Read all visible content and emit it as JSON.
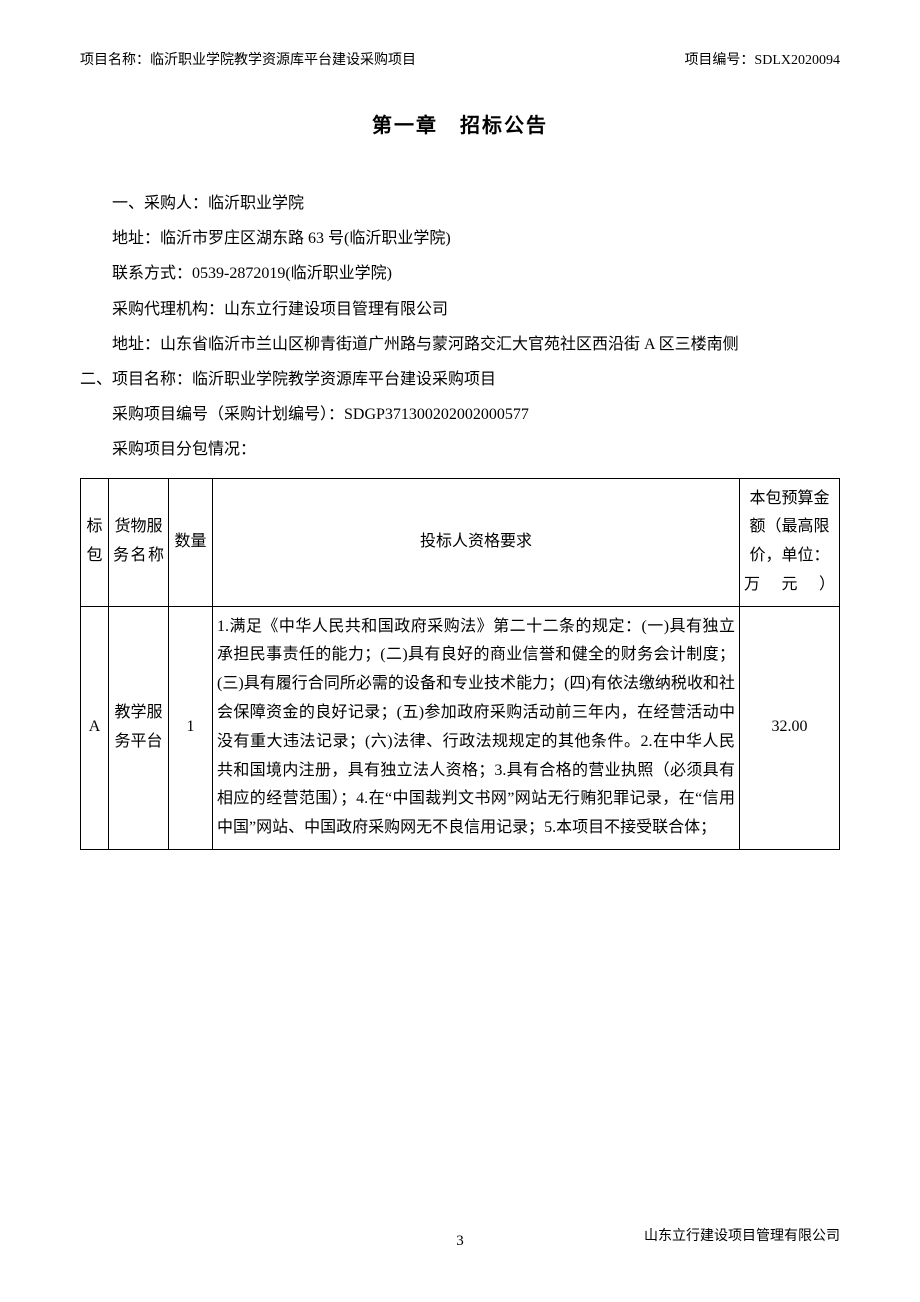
{
  "header": {
    "project_label": "项目名称：临沂职业学院教学资源库平台建设采购项目",
    "project_code_label": "项目编号：SDLX2020094"
  },
  "chapter_title": "第一章 招标公告",
  "body": {
    "p1": "一、采购人：临沂职业学院",
    "p2": "地址：临沂市罗庄区湖东路 63 号(临沂职业学院)",
    "p3": "联系方式：0539-2872019(临沂职业学院)",
    "p4": "采购代理机构：山东立行建设项目管理有限公司",
    "p5": "地址：山东省临沂市兰山区柳青街道广州路与蒙河路交汇大官苑社区西沿街 A 区三楼南侧",
    "p6": "二、项目名称：临沂职业学院教学资源库平台建设采购项目",
    "p7": "采购项目编号（采购计划编号）：SDGP371300202002000577",
    "p8": "采购项目分包情况："
  },
  "table": {
    "headers": {
      "pkg": "标包",
      "name": "货物服务名称",
      "qty": "数量",
      "req": "投标人资格要求",
      "budget": "本包预算金额（最高限价，单位：万元）"
    },
    "row": {
      "pkg": "A",
      "name": "教学服务平台",
      "qty": "1",
      "req": "1.满足《中华人民共和国政府采购法》第二十二条的规定：(一)具有独立承担民事责任的能力；(二)具有良好的商业信誉和健全的财务会计制度；(三)具有履行合同所必需的设备和专业技术能力；(四)有依法缴纳税收和社会保障资金的良好记录；(五)参加政府采购活动前三年内，在经营活动中没有重大违法记录；(六)法律、行政法规规定的其他条件。2.在中华人民共和国境内注册，具有独立法人资格；3.具有合格的营业执照（必须具有相应的经营范围）；4.在“中国裁判文书网”网站无行贿犯罪记录，在“信用中国”网站、中国政府采购网无不良信用记录；5.本项目不接受联合体；",
      "budget": "32.00"
    }
  },
  "footer": {
    "page": "3",
    "company": "山东立行建设项目管理有限公司"
  }
}
